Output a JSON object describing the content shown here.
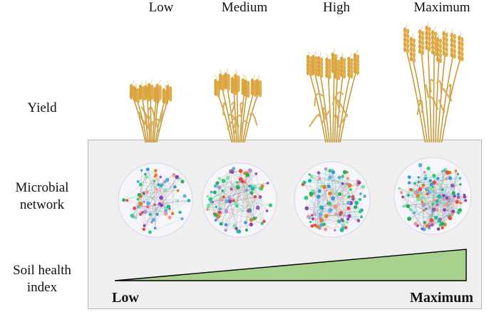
{
  "levels": [
    "Low",
    "Medium",
    "High",
    "Maximum"
  ],
  "rows": {
    "yield": "Yield",
    "microbial_network_line1": "Microbial",
    "microbial_network_line2": "network",
    "soil_health_line1": "Soil health",
    "soil_health_line2": "index"
  },
  "gradient": {
    "start_label": "Low",
    "end_label": "Maximum",
    "fill_color": "#a9d18e",
    "stroke_color": "#000000"
  },
  "colors": {
    "wheat": "#d9a441",
    "panel_bg": "#efefef"
  },
  "icons": {
    "plant": "wheat-bundle-icon",
    "network": "microbial-network-icon"
  }
}
